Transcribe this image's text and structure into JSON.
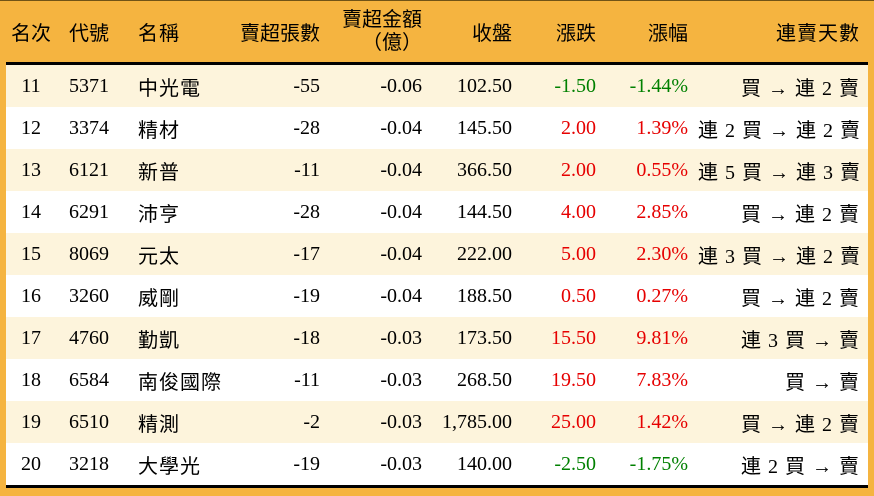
{
  "colors": {
    "frame_gold": "#f5b440",
    "row_cream": "#fdf4dc",
    "row_white": "#ffffff",
    "up_red": "#e60000",
    "down_green": "#008000",
    "rule_black": "#000000"
  },
  "table": {
    "columns": [
      {
        "label": "名次"
      },
      {
        "label": "代號"
      },
      {
        "label": "名稱"
      },
      {
        "label": "賣超張數"
      },
      {
        "label": "賣超金額",
        "label2": "（億）"
      },
      {
        "label": "收盤"
      },
      {
        "label": "漲跌"
      },
      {
        "label": "漲幅"
      },
      {
        "label": "連賣天數"
      }
    ],
    "rows": [
      {
        "rank": "11",
        "code": "5371",
        "name": "中光電",
        "sell_volume": "-55",
        "sell_amount": "-0.06",
        "close": "102.50",
        "change": "-1.50",
        "change_pct": "-1.44%",
        "streak": "買 → 連 2 賣"
      },
      {
        "rank": "12",
        "code": "3374",
        "name": "精材",
        "sell_volume": "-28",
        "sell_amount": "-0.04",
        "close": "145.50",
        "change": "2.00",
        "change_pct": "1.39%",
        "streak": "連 2 買 → 連 2 賣"
      },
      {
        "rank": "13",
        "code": "6121",
        "name": "新普",
        "sell_volume": "-11",
        "sell_amount": "-0.04",
        "close": "366.50",
        "change": "2.00",
        "change_pct": "0.55%",
        "streak": "連 5 買 → 連 3 賣"
      },
      {
        "rank": "14",
        "code": "6291",
        "name": "沛亨",
        "sell_volume": "-28",
        "sell_amount": "-0.04",
        "close": "144.50",
        "change": "4.00",
        "change_pct": "2.85%",
        "streak": "買 → 連 2 賣"
      },
      {
        "rank": "15",
        "code": "8069",
        "name": "元太",
        "sell_volume": "-17",
        "sell_amount": "-0.04",
        "close": "222.00",
        "change": "5.00",
        "change_pct": "2.30%",
        "streak": "連 3 買 → 連 2 賣"
      },
      {
        "rank": "16",
        "code": "3260",
        "name": "威剛",
        "sell_volume": "-19",
        "sell_amount": "-0.04",
        "close": "188.50",
        "change": "0.50",
        "change_pct": "0.27%",
        "streak": "買 → 連 2 賣"
      },
      {
        "rank": "17",
        "code": "4760",
        "name": "勤凱",
        "sell_volume": "-18",
        "sell_amount": "-0.03",
        "close": "173.50",
        "change": "15.50",
        "change_pct": "9.81%",
        "streak": "連 3 買 → 賣"
      },
      {
        "rank": "18",
        "code": "6584",
        "name": "南俊國際",
        "sell_volume": "-11",
        "sell_amount": "-0.03",
        "close": "268.50",
        "change": "19.50",
        "change_pct": "7.83%",
        "streak": "買 → 賣"
      },
      {
        "rank": "19",
        "code": "6510",
        "name": "精測",
        "sell_volume": "-2",
        "sell_amount": "-0.03",
        "close": "1,785.00",
        "change": "25.00",
        "change_pct": "1.42%",
        "streak": "買 → 連 2 賣"
      },
      {
        "rank": "20",
        "code": "3218",
        "name": "大學光",
        "sell_volume": "-19",
        "sell_amount": "-0.03",
        "close": "140.00",
        "change": "-2.50",
        "change_pct": "-1.75%",
        "streak": "連 2 買 → 賣"
      }
    ]
  },
  "chart_data": {
    "type": "table",
    "columns": [
      "名次",
      "代號",
      "名稱",
      "賣超張數",
      "賣超金額（億）",
      "收盤",
      "漲跌",
      "漲幅",
      "連賣天數"
    ],
    "rows": [
      [
        "11",
        "5371",
        "中光電",
        "-55",
        "-0.06",
        "102.50",
        "-1.50",
        "-1.44%",
        "買 → 連 2 賣"
      ],
      [
        "12",
        "3374",
        "精材",
        "-28",
        "-0.04",
        "145.50",
        "2.00",
        "1.39%",
        "連 2 買 → 連 2 賣"
      ],
      [
        "13",
        "6121",
        "新普",
        "-11",
        "-0.04",
        "366.50",
        "2.00",
        "0.55%",
        "連 5 買 → 連 3 賣"
      ],
      [
        "14",
        "6291",
        "沛亨",
        "-28",
        "-0.04",
        "144.50",
        "4.00",
        "2.85%",
        "買 → 連 2 賣"
      ],
      [
        "15",
        "8069",
        "元太",
        "-17",
        "-0.04",
        "222.00",
        "5.00",
        "2.30%",
        "連 3 買 → 連 2 賣"
      ],
      [
        "16",
        "3260",
        "威剛",
        "-19",
        "-0.04",
        "188.50",
        "0.50",
        "0.27%",
        "買 → 連 2 賣"
      ],
      [
        "17",
        "4760",
        "勤凱",
        "-18",
        "-0.03",
        "173.50",
        "15.50",
        "9.81%",
        "連 3 買 → 賣"
      ],
      [
        "18",
        "6584",
        "南俊國際",
        "-11",
        "-0.03",
        "268.50",
        "19.50",
        "7.83%",
        "買 → 賣"
      ],
      [
        "19",
        "6510",
        "精測",
        "-2",
        "-0.03",
        "1,785.00",
        "25.00",
        "1.42%",
        "買 → 連 2 賣"
      ],
      [
        "20",
        "3218",
        "大學光",
        "-19",
        "-0.03",
        "140.00",
        "-2.50",
        "-1.75%",
        "連 2 買 → 賣"
      ]
    ],
    "notes": "positive change shown red, negative change shown green; odd-rank rows cream background"
  }
}
